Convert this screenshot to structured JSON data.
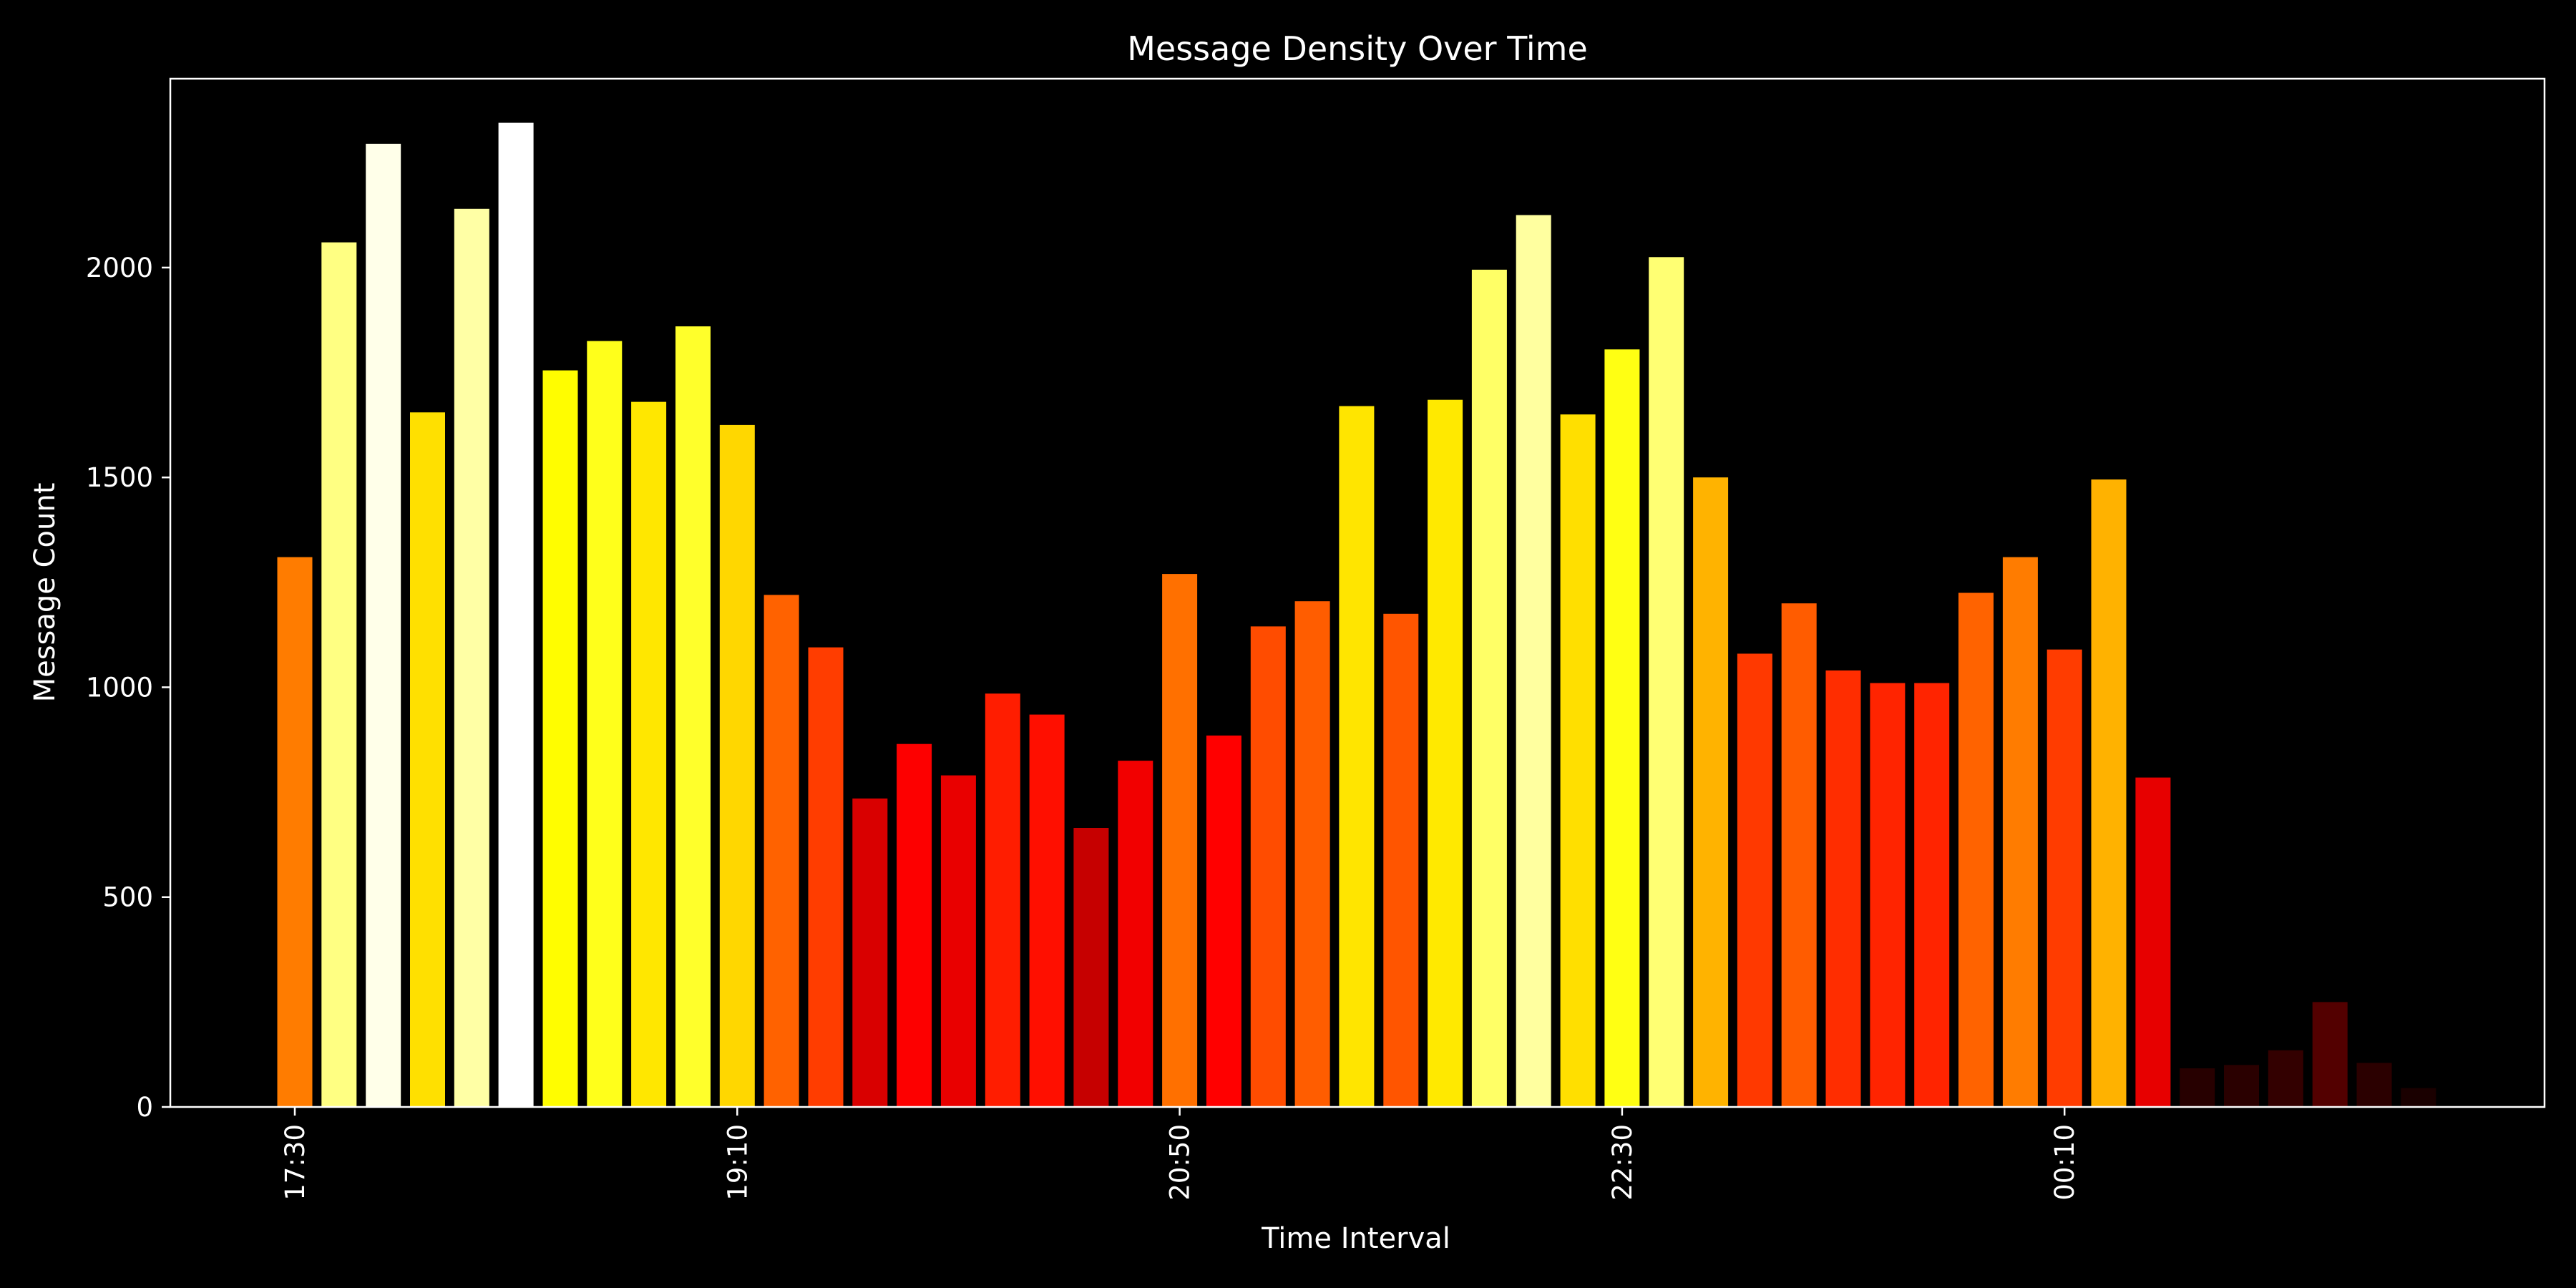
{
  "chart_data": {
    "type": "bar",
    "title": "Message Density Over Time",
    "xlabel": "Time Interval",
    "ylabel": "Message Count",
    "ylim": [
      0,
      2450
    ],
    "yticks": [
      0,
      500,
      1000,
      1500,
      2000
    ],
    "xtick_labels": [
      "17:30",
      "19:10",
      "20:50",
      "22:30",
      "00:10"
    ],
    "xtick_bar_index": [
      0,
      10,
      20,
      30,
      40
    ],
    "colormap": "hot",
    "background_color": "#000000",
    "foreground_color": "#ffffff",
    "grid": false,
    "values": [
      1310,
      2060,
      2295,
      1655,
      2140,
      2345,
      1755,
      1825,
      1680,
      1860,
      1625,
      1220,
      1095,
      735,
      865,
      790,
      985,
      935,
      665,
      825,
      1270,
      885,
      1145,
      1205,
      1670,
      1175,
      1685,
      1995,
      2125,
      1650,
      1805,
      2025,
      1500,
      1080,
      1200,
      1040,
      1010,
      1010,
      1225,
      1310,
      1090,
      1495,
      785,
      92,
      100,
      135,
      250,
      105,
      45
    ]
  }
}
